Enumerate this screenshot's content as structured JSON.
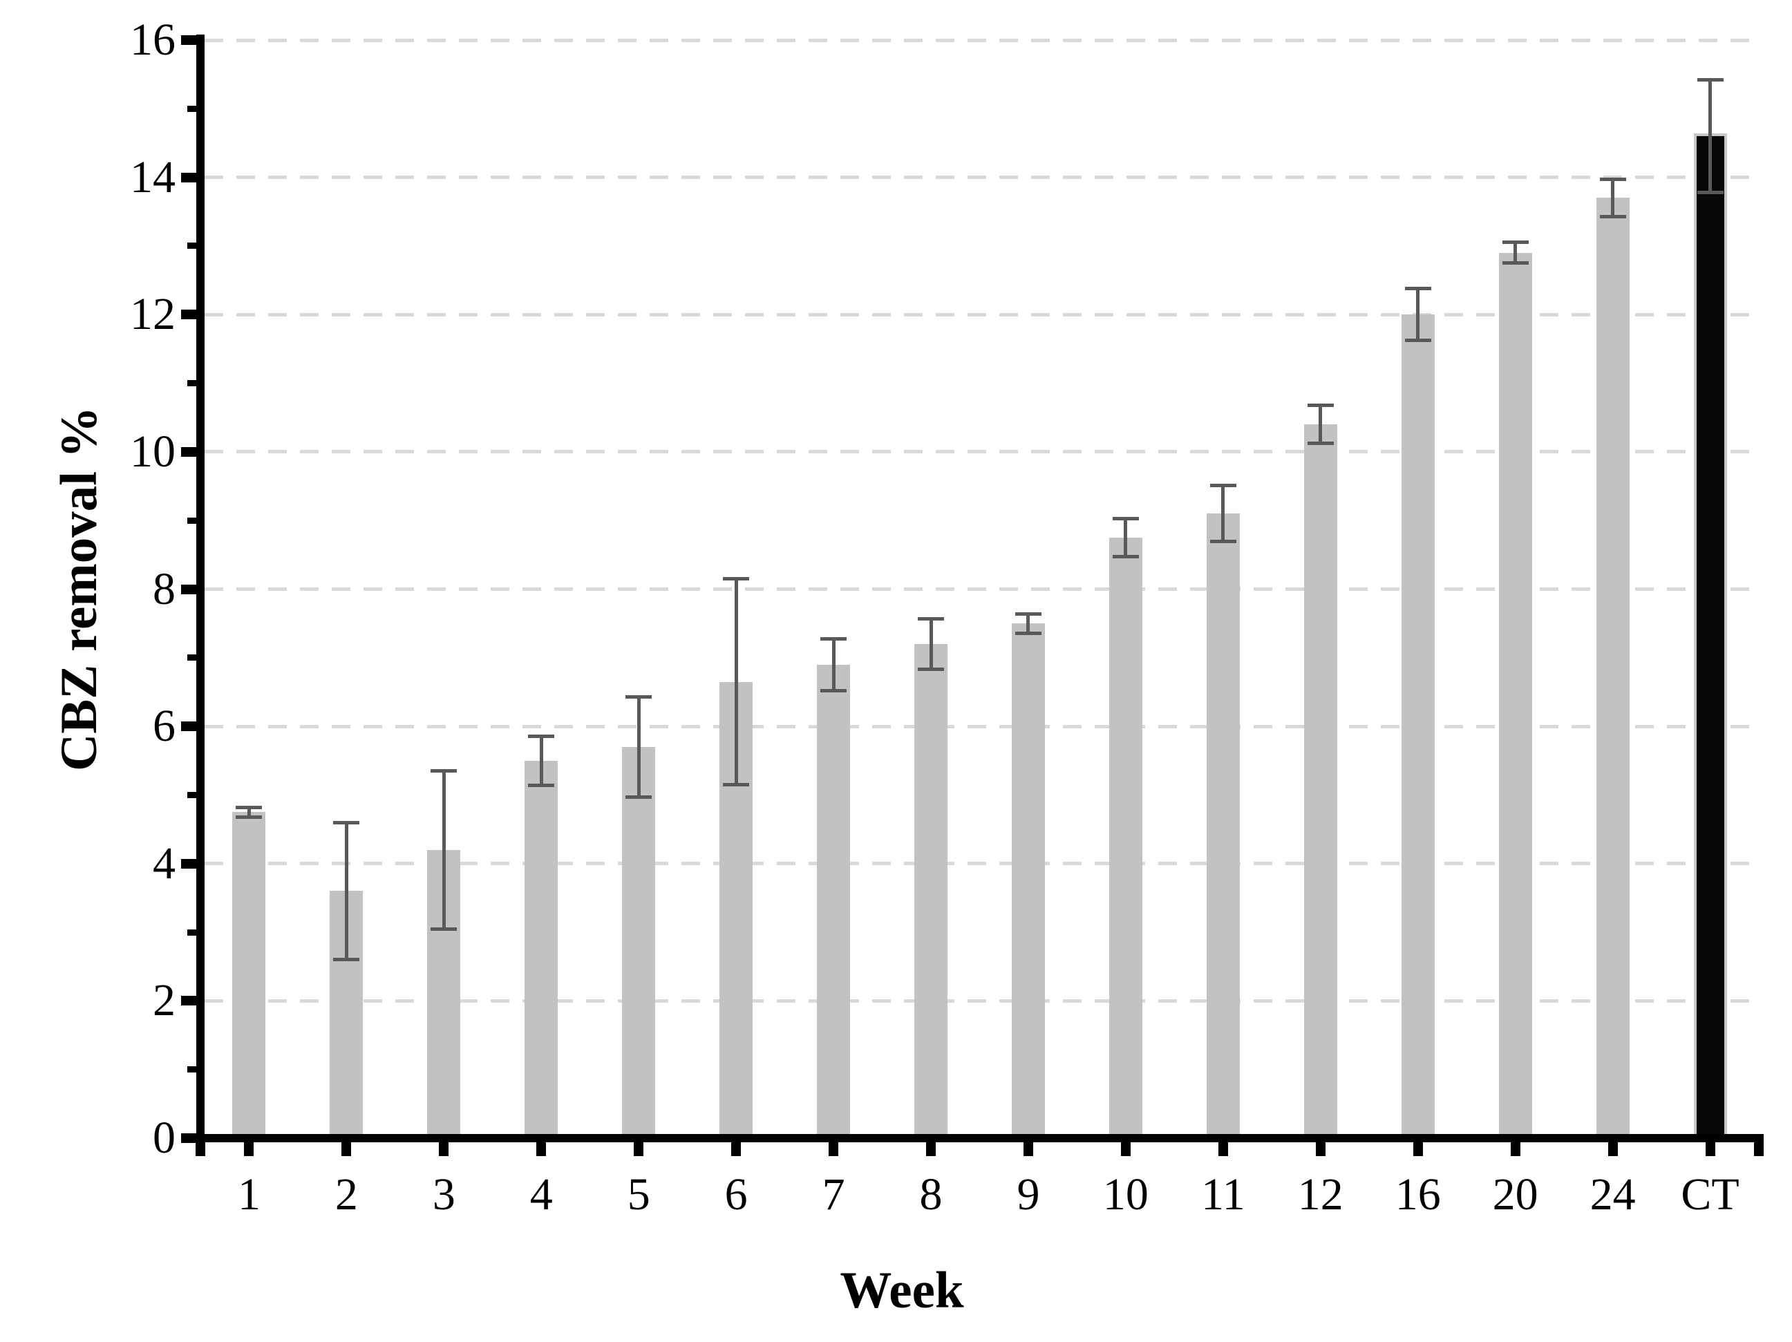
{
  "figure": {
    "background_color": "#ffffff",
    "title": ""
  },
  "chart_data": {
    "type": "bar",
    "title": "",
    "xlabel": "Week",
    "ylabel": "CBZ removal %",
    "categories": [
      "1",
      "2",
      "3",
      "4",
      "5",
      "6",
      "7",
      "8",
      "9",
      "10",
      "11",
      "12",
      "16",
      "20",
      "24",
      "CT"
    ],
    "values": [
      4.75,
      3.6,
      4.2,
      5.5,
      5.7,
      6.65,
      6.9,
      7.2,
      7.5,
      8.75,
      9.1,
      10.4,
      12.0,
      12.9,
      13.7,
      14.6
    ],
    "error_bars": [
      0.07,
      1.0,
      1.15,
      0.36,
      0.73,
      1.5,
      0.38,
      0.37,
      0.14,
      0.28,
      0.41,
      0.28,
      0.38,
      0.15,
      0.27,
      0.82
    ],
    "highlight_category": "CT",
    "ylim": [
      0,
      16
    ],
    "y_major_step": 2,
    "y_minor_step": 1,
    "y_tick_labels": [
      "0",
      "2",
      "4",
      "6",
      "8",
      "10",
      "12",
      "14",
      "16"
    ],
    "grid": "horizontal dashed gridlines at major y ticks",
    "legend": null,
    "colors": {
      "bar": "#c2c2c2",
      "highlight_bar": "#070707",
      "highlight_border": "#c8c8c8",
      "error_bar": "#595959",
      "gridline": "#d9d9d9",
      "axis": "#000000",
      "text": "#000000"
    }
  }
}
